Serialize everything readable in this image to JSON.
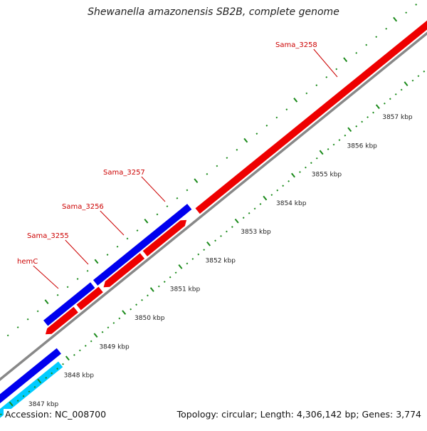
{
  "title": "Shewanella amazonensis SB2B, complete genome",
  "footer": {
    "accession": "Accession: NC_008700",
    "summary": "Topology: circular; Length: 4,306,142 bp; Genes: 3,774"
  },
  "colors": {
    "forward_cds": "#0000ee",
    "reverse_cds": "#ee0000",
    "other_feature": "#00ccff",
    "backbone": "#888888",
    "tick": "#1a8a1a",
    "label": "#cc0000",
    "tick_label": "#222222"
  },
  "scale": {
    "unit": "kbp",
    "ticks_kbp": [
      3847,
      3848,
      3849,
      3850,
      3851,
      3852,
      3853,
      3854,
      3855,
      3856,
      3857
    ]
  },
  "genes": [
    {
      "name": "hemC",
      "strand": "-"
    },
    {
      "name": "Sama_3255",
      "strand": "+"
    },
    {
      "name": "Sama_3256",
      "strand": "+"
    },
    {
      "name": "Sama_3257",
      "strand": "+"
    },
    {
      "name": "Sama_3258",
      "strand": "-"
    }
  ]
}
